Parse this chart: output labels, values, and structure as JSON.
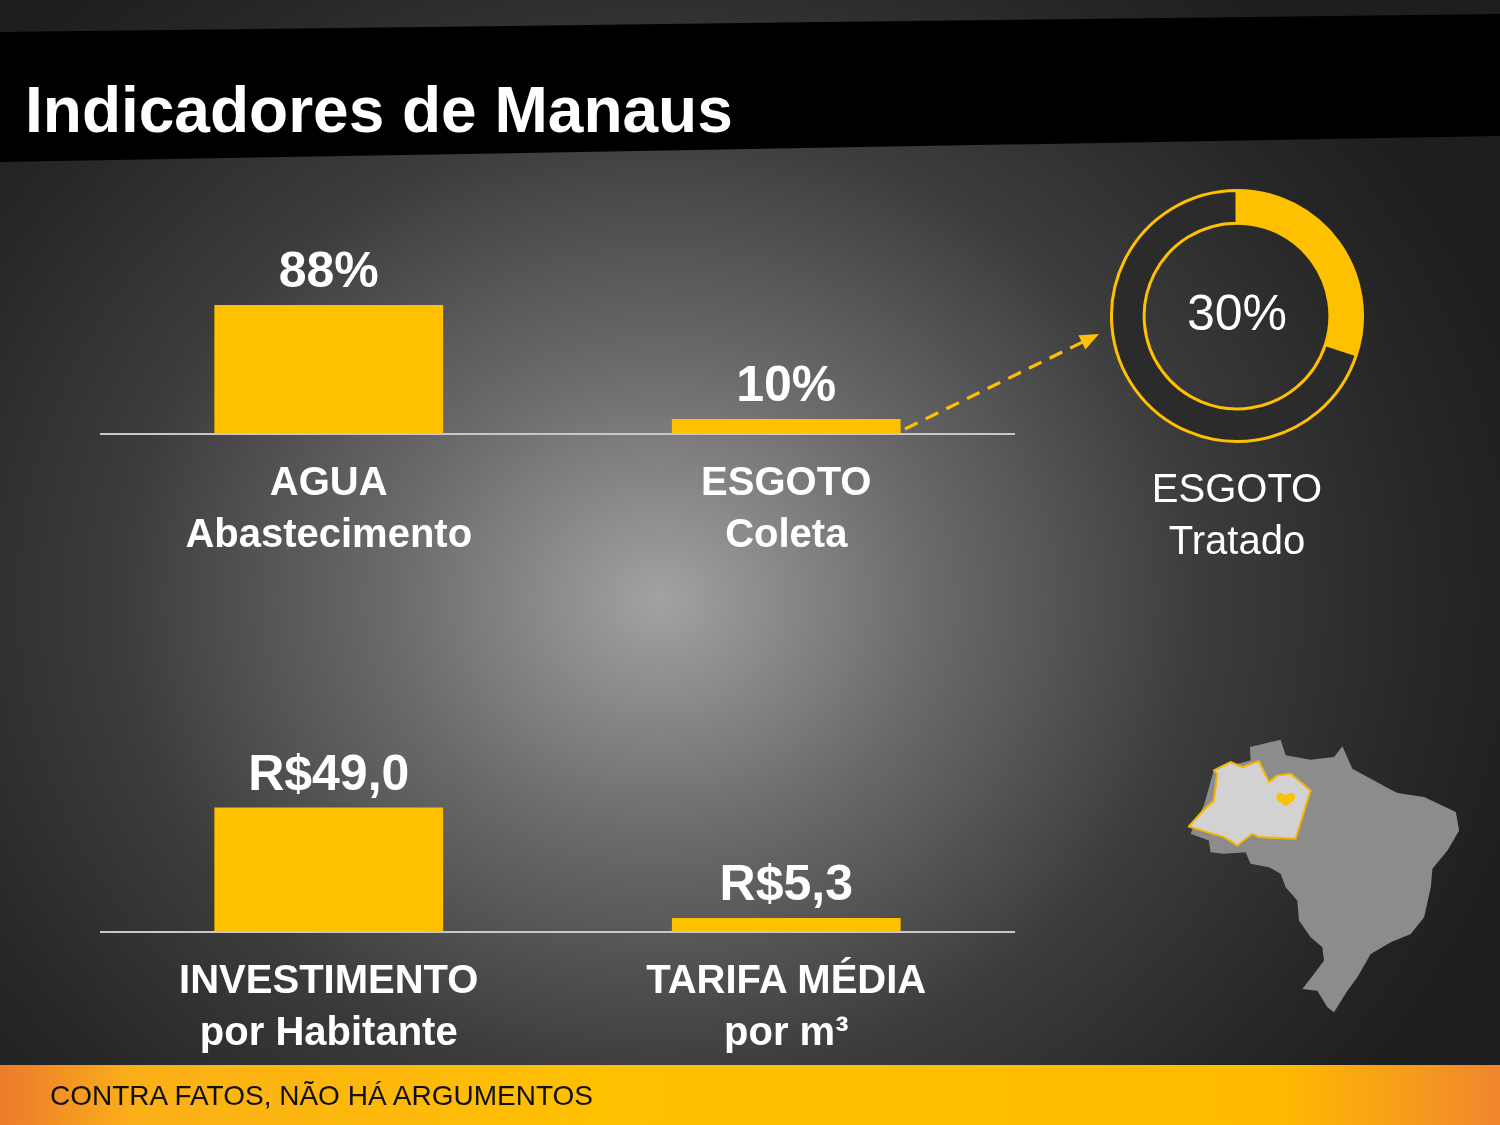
{
  "chart_data": [
    {
      "type": "bar",
      "title": "Indicadores de Manaus",
      "categories": [
        "AGUA\nAbastecimento",
        "ESGOTO\nColeta"
      ],
      "values": [
        88,
        10
      ],
      "color": "#ffc000",
      "value_labels": [
        "88%",
        "10%"
      ],
      "annotations": [
        "CONTRA FATOS, NÃO HÁ ARGUMENTOS"
      ]
    },
    {
      "type": "donut",
      "title": "ESGOTO\nTratado",
      "categories": [
        null,
        null
      ],
      "values": [
        30,
        70
      ],
      "colors": [
        "#ffc000",
        "#2b2b2b"
      ],
      "value_labels": [
        "30%",
        null
      ]
    },
    {
      "type": "bar",
      "categories": [
        "INVESTIMENTO\npor Habitante",
        "TARIFA MÉDIA\npor m³"
      ],
      "values": [
        49.0,
        5.3
      ],
      "color": "#ffc000",
      "value_labels": [
        "R$49,0",
        "R$5,3"
      ]
    }
  ]
}
